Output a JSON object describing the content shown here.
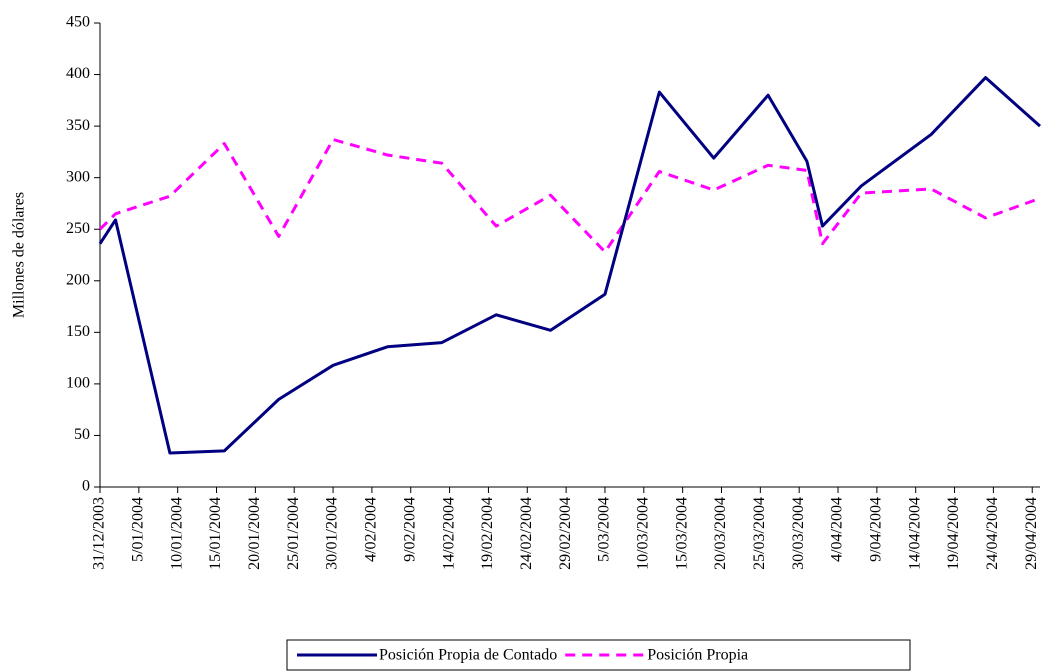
{
  "chart_data": {
    "type": "line",
    "y_label": "Millones de dólares",
    "x": [
      "2003-12-31",
      "2004-01-02",
      "2004-01-09",
      "2004-01-16",
      "2004-01-23",
      "2004-01-30",
      "2004-02-06",
      "2004-02-13",
      "2004-02-20",
      "2004-02-27",
      "2004-03-05",
      "2004-03-12",
      "2004-03-19",
      "2004-03-26",
      "2004-03-31",
      "2004-04-02",
      "2004-04-07",
      "2004-04-16",
      "2004-04-23",
      "2004-04-30"
    ],
    "series": [
      {
        "name": "Posición Propia de Contado",
        "color": "#000080",
        "dash": "solid",
        "values": [
          236,
          259,
          33,
          35,
          85,
          118,
          136,
          140,
          167,
          152,
          187,
          383,
          319,
          380,
          316,
          253,
          292,
          342,
          397,
          350
        ]
      },
      {
        "name": "Posición Propia",
        "color": "#ff00ff",
        "dash": "dashed",
        "values": [
          250,
          265,
          282,
          333,
          243,
          337,
          322,
          314,
          253,
          283,
          228,
          306,
          288,
          312,
          307,
          236,
          285,
          289,
          261,
          280
        ]
      }
    ],
    "xlim": [
      "2003-12-31",
      "2004-04-30"
    ],
    "xticks": [
      {
        "value": "2003-12-31",
        "label": "31/12/2003"
      },
      {
        "value": "2004-01-05",
        "label": "5/01/2004"
      },
      {
        "value": "2004-01-10",
        "label": "10/01/2004"
      },
      {
        "value": "2004-01-15",
        "label": "15/01/2004"
      },
      {
        "value": "2004-01-20",
        "label": "20/01/2004"
      },
      {
        "value": "2004-01-25",
        "label": "25/01/2004"
      },
      {
        "value": "2004-01-30",
        "label": "30/01/2004"
      },
      {
        "value": "2004-02-04",
        "label": "4/02/2004"
      },
      {
        "value": "2004-02-09",
        "label": "9/02/2004"
      },
      {
        "value": "2004-02-14",
        "label": "14/02/2004"
      },
      {
        "value": "2004-02-19",
        "label": "19/02/2004"
      },
      {
        "value": "2004-02-24",
        "label": "24/02/2004"
      },
      {
        "value": "2004-02-29",
        "label": "29/02/2004"
      },
      {
        "value": "2004-03-05",
        "label": "5/03/2004"
      },
      {
        "value": "2004-03-10",
        "label": "10/03/2004"
      },
      {
        "value": "2004-03-15",
        "label": "15/03/2004"
      },
      {
        "value": "2004-03-20",
        "label": "20/03/2004"
      },
      {
        "value": "2004-03-25",
        "label": "25/03/2004"
      },
      {
        "value": "2004-03-30",
        "label": "30/03/2004"
      },
      {
        "value": "2004-04-04",
        "label": "4/04/2004"
      },
      {
        "value": "2004-04-09",
        "label": "9/04/2004"
      },
      {
        "value": "2004-04-14",
        "label": "14/04/2004"
      },
      {
        "value": "2004-04-19",
        "label": "19/04/2004"
      },
      {
        "value": "2004-04-24",
        "label": "24/04/2004"
      },
      {
        "value": "2004-04-29",
        "label": "29/04/2004"
      }
    ],
    "ylim": [
      0,
      450
    ],
    "yticks": [
      0,
      50,
      100,
      150,
      200,
      250,
      300,
      350,
      400,
      450
    ],
    "grid": false,
    "legend": "bottom"
  }
}
